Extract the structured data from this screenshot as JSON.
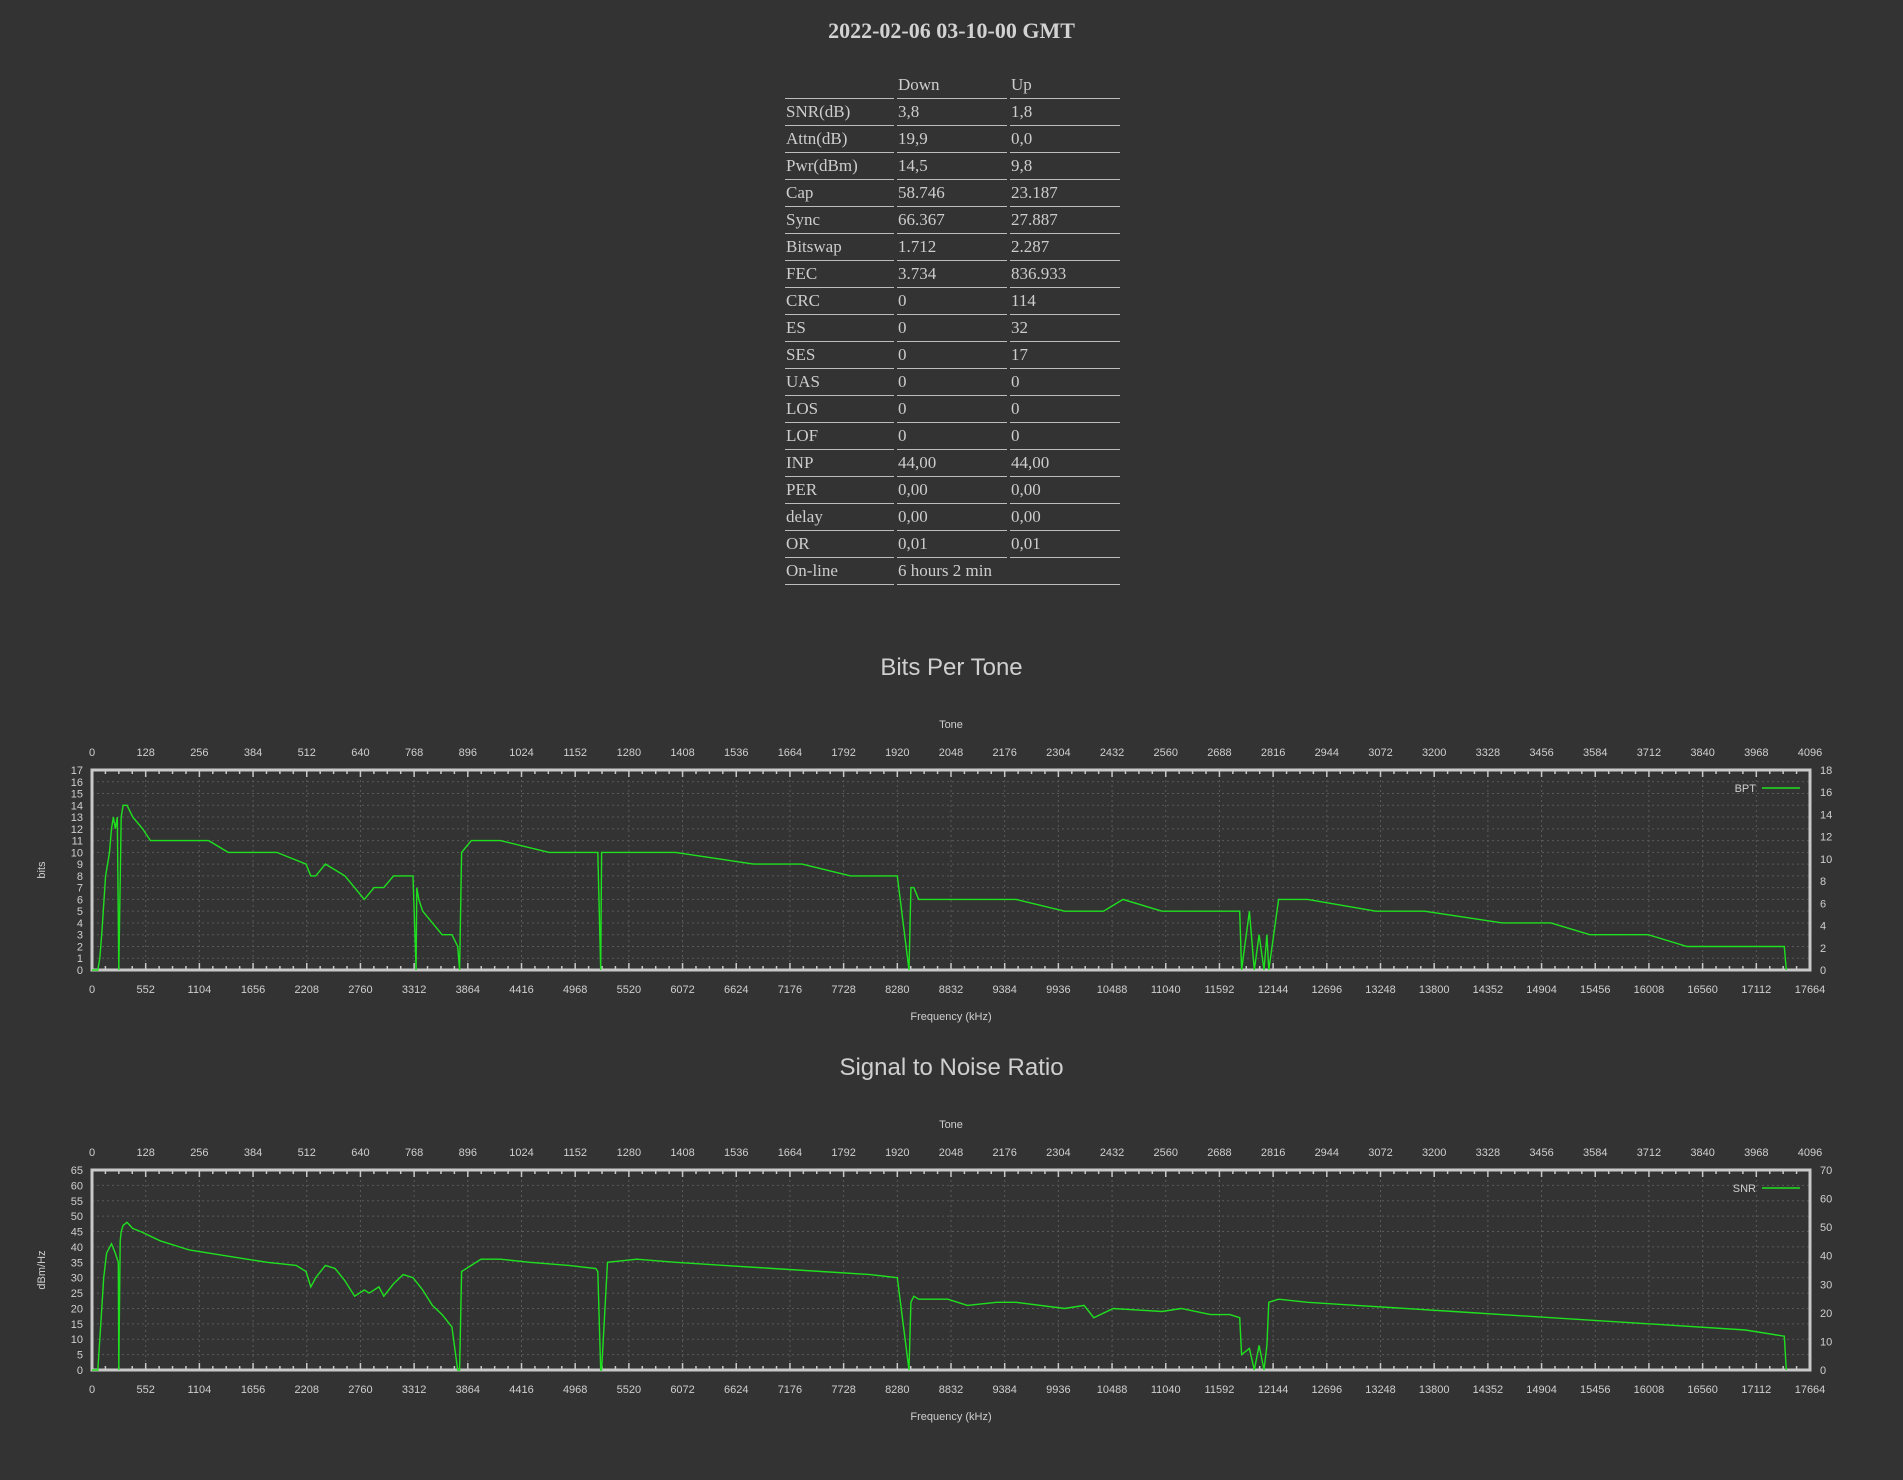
{
  "page": {
    "title": "2022-02-06 03-10-00 GMT"
  },
  "stats": {
    "headers": [
      "",
      "Down",
      "Up"
    ],
    "rows": [
      [
        "SNR(dB)",
        "3,8",
        "1,8"
      ],
      [
        "Attn(dB)",
        "19,9",
        "0,0"
      ],
      [
        "Pwr(dBm)",
        "14,5",
        "9,8"
      ],
      [
        "Cap",
        "58.746",
        "23.187"
      ],
      [
        "Sync",
        "66.367",
        "27.887"
      ],
      [
        "Bitswap",
        "1.712",
        "2.287"
      ],
      [
        "FEC",
        "3.734",
        "836.933"
      ],
      [
        "CRC",
        "0",
        "114"
      ],
      [
        "ES",
        "0",
        "32"
      ],
      [
        "SES",
        "0",
        "17"
      ],
      [
        "UAS",
        "0",
        "0"
      ],
      [
        "LOS",
        "0",
        "0"
      ],
      [
        "LOF",
        "0",
        "0"
      ],
      [
        "INP",
        "44,00",
        "44,00"
      ],
      [
        "PER",
        "0,00",
        "0,00"
      ],
      [
        "delay",
        "0,00",
        "0,00"
      ],
      [
        "OR",
        "0,01",
        "0,01"
      ]
    ],
    "online": {
      "label": "On-line",
      "value": "6 hours 2 min"
    }
  },
  "chart_data": [
    {
      "type": "line",
      "title": "Bits Per Tone",
      "xlabel": "Frequency (kHz)",
      "x2label": "Tone",
      "ylabel": "bits",
      "xlim": [
        0,
        17664
      ],
      "x2lim": [
        0,
        4096
      ],
      "ylim": [
        0,
        17
      ],
      "y2lim": [
        0,
        18
      ],
      "x_ticks": [
        0,
        552,
        1104,
        1656,
        2208,
        2760,
        3312,
        3864,
        4416,
        4968,
        5520,
        6072,
        6624,
        7176,
        7728,
        8280,
        8832,
        9384,
        9936,
        10488,
        11040,
        11592,
        12144,
        12696,
        13248,
        13800,
        14352,
        14904,
        15456,
        16008,
        16560,
        17112,
        17664
      ],
      "x2_ticks": [
        0,
        128,
        256,
        384,
        512,
        640,
        768,
        896,
        1024,
        1152,
        1280,
        1408,
        1536,
        1664,
        1792,
        1920,
        2048,
        2176,
        2304,
        2432,
        2560,
        2688,
        2816,
        2944,
        3072,
        3200,
        3328,
        3456,
        3584,
        3712,
        3840,
        3968,
        4096
      ],
      "y_ticks": [
        0,
        1,
        2,
        3,
        4,
        5,
        6,
        7,
        8,
        9,
        10,
        11,
        12,
        13,
        14,
        15,
        16,
        17
      ],
      "y2_ticks": [
        0,
        2,
        4,
        6,
        8,
        10,
        12,
        14,
        16,
        18
      ],
      "grid": true,
      "legend": "top-right",
      "color": "#1fe01f",
      "series": [
        {
          "name": "BPT",
          "x": [
            0,
            60,
            80,
            100,
            140,
            180,
            200,
            220,
            240,
            260,
            276,
            300,
            320,
            360,
            420,
            520,
            600,
            700,
            800,
            1200,
            1400,
            1700,
            1900,
            2200,
            2250,
            2300,
            2400,
            2600,
            2700,
            2800,
            2900,
            3000,
            3100,
            3200,
            3300,
            3332,
            3340,
            3360,
            3400,
            3500,
            3600,
            3700,
            3760,
            3780,
            3800,
            3900,
            4200,
            4700,
            4900,
            5000,
            5200,
            5230,
            5240,
            5300,
            5600,
            6000,
            6800,
            7000,
            7300,
            7800,
            8100,
            8280,
            8400,
            8420,
            8450,
            8500,
            8800,
            9000,
            9200,
            9500,
            10000,
            10200,
            10400,
            10600,
            11000,
            11200,
            11500,
            11800,
            11820,
            11900,
            11950,
            12000,
            12050,
            12080,
            12100,
            12200,
            12500,
            13200,
            13700,
            14500,
            15000,
            15400,
            16000,
            16400,
            16700,
            17300,
            17400,
            17420
          ],
          "y": [
            0,
            0,
            1,
            3,
            8,
            10,
            12,
            13,
            12,
            13,
            0,
            13,
            14,
            14,
            13,
            12,
            11,
            11,
            11,
            11,
            10,
            10,
            10,
            9,
            8,
            8,
            9,
            8,
            7,
            6,
            7,
            7,
            8,
            8,
            8,
            0,
            7,
            6,
            5,
            4,
            3,
            3,
            2,
            0,
            10,
            11,
            11,
            10,
            10,
            10,
            10,
            0,
            10,
            10,
            10,
            10,
            9,
            9,
            9,
            8,
            8,
            8,
            0,
            7,
            7,
            6,
            6,
            6,
            6,
            6,
            5,
            5,
            5,
            6,
            5,
            5,
            5,
            5,
            0,
            5,
            0,
            3,
            0,
            3,
            0,
            6,
            6,
            5,
            5,
            4,
            4,
            3,
            3,
            2,
            2,
            2,
            2,
            0
          ]
        }
      ]
    },
    {
      "type": "line",
      "title": "Signal to Noise Ratio",
      "xlabel": "Frequency (kHz)",
      "x2label": "Tone",
      "ylabel": "dBm/Hz",
      "xlim": [
        0,
        17664
      ],
      "x2lim": [
        0,
        4096
      ],
      "ylim": [
        0,
        65
      ],
      "y2lim": [
        0,
        70
      ],
      "x_ticks": [
        0,
        552,
        1104,
        1656,
        2208,
        2760,
        3312,
        3864,
        4416,
        4968,
        5520,
        6072,
        6624,
        7176,
        7728,
        8280,
        8832,
        9384,
        9936,
        10488,
        11040,
        11592,
        12144,
        12696,
        13248,
        13800,
        14352,
        14904,
        15456,
        16008,
        16560,
        17112,
        17664
      ],
      "x2_ticks": [
        0,
        128,
        256,
        384,
        512,
        640,
        768,
        896,
        1024,
        1152,
        1280,
        1408,
        1536,
        1664,
        1792,
        1920,
        2048,
        2176,
        2304,
        2432,
        2560,
        2688,
        2816,
        2944,
        3072,
        3200,
        3328,
        3456,
        3584,
        3712,
        3840,
        3968,
        4096
      ],
      "y_ticks": [
        0,
        5,
        10,
        15,
        20,
        25,
        30,
        35,
        40,
        45,
        50,
        55,
        60,
        65
      ],
      "y2_ticks": [
        0,
        10,
        20,
        30,
        40,
        50,
        60,
        70
      ],
      "grid": true,
      "legend": "top-right",
      "color": "#1fe01f",
      "series": [
        {
          "name": "SNR",
          "x": [
            0,
            60,
            90,
            120,
            150,
            200,
            240,
            270,
            276,
            290,
            300,
            320,
            360,
            420,
            500,
            700,
            1000,
            1400,
            1800,
            2100,
            2200,
            2250,
            2300,
            2400,
            2500,
            2600,
            2700,
            2800,
            2850,
            2950,
            3000,
            3100,
            3200,
            3300,
            3400,
            3500,
            3600,
            3700,
            3760,
            3780,
            3800,
            3900,
            4000,
            4200,
            4500,
            4900,
            5180,
            5200,
            5230,
            5240,
            5300,
            5600,
            6000,
            6500,
            7000,
            7500,
            8000,
            8280,
            8400,
            8420,
            8450,
            8500,
            8800,
            9000,
            9300,
            9500,
            10000,
            10200,
            10300,
            10500,
            11000,
            11200,
            11500,
            11700,
            11800,
            11820,
            11900,
            11950,
            12000,
            12050,
            12080,
            12100,
            12200,
            12500,
            13000,
            14000,
            15000,
            16000,
            17000,
            17400,
            17420
          ],
          "y": [
            0,
            0,
            15,
            30,
            38,
            41,
            38,
            35,
            0,
            42,
            45,
            47,
            48,
            46,
            45,
            42,
            39,
            37,
            35,
            34,
            32,
            27,
            30,
            34,
            33,
            29,
            24,
            26,
            25,
            27,
            24,
            28,
            31,
            30,
            26,
            21,
            18,
            14,
            0,
            0,
            32,
            34,
            36,
            36,
            35,
            34,
            33,
            32,
            0,
            0,
            35,
            36,
            35,
            34,
            33,
            32,
            31,
            30,
            0,
            22,
            24,
            23,
            23,
            21,
            22,
            22,
            20,
            21,
            17,
            20,
            19,
            20,
            18,
            18,
            17,
            5,
            7,
            0,
            8,
            0,
            8,
            22,
            23,
            22,
            21,
            19,
            17,
            15,
            13,
            11,
            0
          ]
        }
      ]
    }
  ]
}
